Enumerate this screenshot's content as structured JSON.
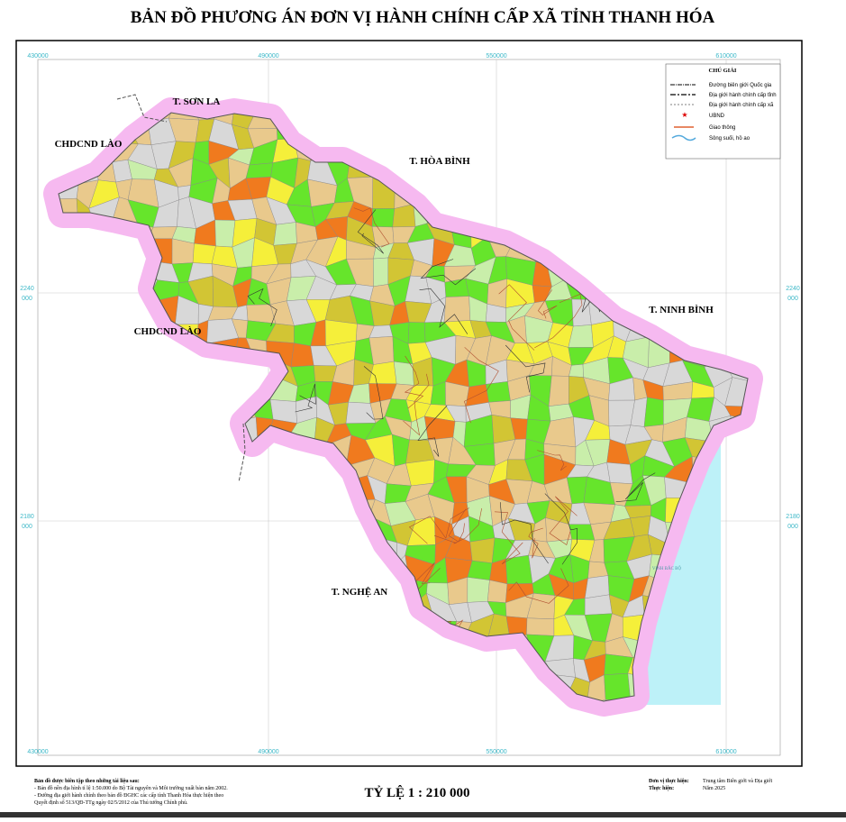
{
  "title": "BẢN ĐỒ PHƯƠNG ÁN ĐƠN VỊ HÀNH CHÍNH CẤP XÃ TỈNH THANH HÓA",
  "grid": {
    "x_labels": [
      "430000",
      "490000",
      "550000",
      "610000"
    ],
    "y_labels": [
      {
        "top": "2240",
        "bottom": "000"
      },
      {
        "top": "2180",
        "bottom": "000"
      }
    ]
  },
  "regions": [
    "T. SƠN LA",
    "CHDCND LÀO",
    "T. HÒA BÌNH",
    "CHDCND LÀO",
    "T. NINH BÌNH",
    "T. NGHỆ AN"
  ],
  "sea_label": "VỊNH BẮC BỘ",
  "legend": {
    "title": "CHÚ GIẢI",
    "items": [
      "Đường biên giới Quốc gia",
      "Địa giới hành chính cấp tỉnh",
      "Địa giới hành chính cấp xã",
      "UBND",
      "Giao thông",
      "Sông suối, hồ ao"
    ]
  },
  "notes": {
    "heading": "Bản đồ được biên tập theo những tài liệu sau:",
    "lines": [
      "- Bản đồ nền địa hình tỉ lệ 1:50.000 do Bộ Tài nguyên và Môi trường xuất bản năm 2002.",
      "- Đường địa giới hành chính theo bản đồ ĐGHC các cấp tỉnh Thanh Hóa thực hiện theo",
      "Quyết định số 513/QĐ-TTg ngày 02/5/2012 của Thủ tướng Chính phủ."
    ]
  },
  "scale": "TỶ LỆ 1 : 210 000",
  "credits": {
    "unit_label": "Đơn vị thực hiện:",
    "unit": "Trung tâm Biên giới và Địa giới",
    "done_label": "Thực hiện:",
    "done": "Năm 2025"
  }
}
